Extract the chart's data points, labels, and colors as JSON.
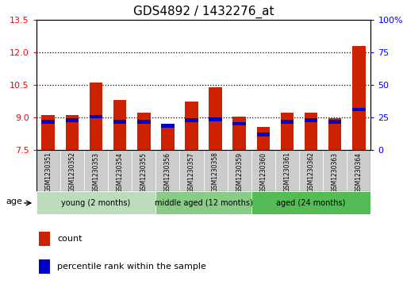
{
  "title": "GDS4892 / 1432276_at",
  "samples": [
    "GSM1230351",
    "GSM1230352",
    "GSM1230353",
    "GSM1230354",
    "GSM1230355",
    "GSM1230356",
    "GSM1230357",
    "GSM1230358",
    "GSM1230359",
    "GSM1230360",
    "GSM1230361",
    "GSM1230362",
    "GSM1230363",
    "GSM1230364"
  ],
  "count_values": [
    9.1,
    9.1,
    10.6,
    9.8,
    9.2,
    8.55,
    9.75,
    10.4,
    9.05,
    8.55,
    9.2,
    9.2,
    8.95,
    12.3
  ],
  "pct_bar_bottom": [
    8.72,
    8.78,
    8.95,
    8.72,
    8.72,
    8.52,
    8.78,
    8.82,
    8.62,
    8.12,
    8.72,
    8.78,
    8.72,
    9.28
  ],
  "pct_bar_height": 0.17,
  "ylim": [
    7.5,
    13.5
  ],
  "yticks": [
    7.5,
    9.0,
    10.5,
    12.0,
    13.5
  ],
  "right_yticks": [
    0,
    25,
    50,
    75,
    100
  ],
  "bar_color": "#cc2200",
  "pct_color": "#0000cc",
  "bar_bottom": 7.5,
  "bar_width": 0.55,
  "groups": [
    {
      "label": "young (2 months)",
      "start": 0,
      "end": 5,
      "color": "#bbddbb"
    },
    {
      "label": "middle aged (12 months)",
      "start": 5,
      "end": 9,
      "color": "#88cc88"
    },
    {
      "label": "aged (24 months)",
      "start": 9,
      "end": 14,
      "color": "#55bb55"
    }
  ],
  "dotted_lines": [
    9.0,
    10.5,
    12.0
  ],
  "legend_count": "count",
  "legend_percentile": "percentile rank within the sample",
  "title_fontsize": 11,
  "label_gray": "#cccccc"
}
